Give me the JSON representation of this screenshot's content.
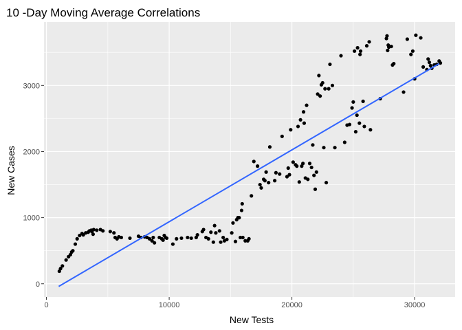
{
  "chart_data": {
    "type": "scatter",
    "title": "10 -Day Moving Average Correlations",
    "xlabel": "New Tests",
    "ylabel": "New Cases",
    "xlim": [
      -200,
      33300
    ],
    "ylim": [
      -200,
      3960
    ],
    "x_ticks": [
      0,
      10000,
      20000,
      30000
    ],
    "x_tick_labels": [
      "0",
      "10000",
      "20000",
      "30000"
    ],
    "y_ticks": [
      0,
      1000,
      2000,
      3000
    ],
    "y_tick_labels": [
      "0",
      "1000",
      "2000",
      "3000"
    ],
    "grid": true,
    "legend": "none",
    "colors": {
      "panel": "#ebebeb",
      "grid": "#ffffff",
      "points": "#000000",
      "trend": "#3366ff"
    },
    "trend_line": {
      "type": "linear",
      "x": [
        1000,
        32000
      ],
      "y": [
        -40,
        3330
      ]
    },
    "points": [
      [
        1050,
        190
      ],
      [
        1150,
        230
      ],
      [
        1300,
        270
      ],
      [
        1600,
        360
      ],
      [
        1800,
        410
      ],
      [
        1950,
        440
      ],
      [
        2050,
        480
      ],
      [
        2150,
        500
      ],
      [
        2350,
        600
      ],
      [
        2500,
        680
      ],
      [
        2700,
        730
      ],
      [
        2900,
        760
      ],
      [
        3000,
        740
      ],
      [
        3200,
        770
      ],
      [
        3400,
        780
      ],
      [
        3500,
        800
      ],
      [
        3650,
        810
      ],
      [
        3700,
        790
      ],
      [
        3800,
        750
      ],
      [
        3850,
        820
      ],
      [
        4100,
        810
      ],
      [
        4400,
        820
      ],
      [
        4600,
        800
      ],
      [
        5200,
        790
      ],
      [
        5500,
        770
      ],
      [
        5600,
        700
      ],
      [
        5750,
        680
      ],
      [
        5900,
        710
      ],
      [
        6100,
        700
      ],
      [
        6800,
        690
      ],
      [
        7500,
        720
      ],
      [
        7700,
        700
      ],
      [
        8000,
        710
      ],
      [
        8200,
        700
      ],
      [
        8400,
        680
      ],
      [
        8600,
        650
      ],
      [
        8700,
        700
      ],
      [
        8800,
        620
      ],
      [
        9200,
        700
      ],
      [
        9400,
        680
      ],
      [
        9500,
        660
      ],
      [
        9600,
        730
      ],
      [
        9700,
        700
      ],
      [
        9800,
        690
      ],
      [
        10300,
        600
      ],
      [
        10600,
        680
      ],
      [
        11000,
        690
      ],
      [
        11500,
        700
      ],
      [
        11800,
        690
      ],
      [
        12200,
        700
      ],
      [
        12300,
        740
      ],
      [
        12700,
        790
      ],
      [
        12800,
        820
      ],
      [
        13000,
        700
      ],
      [
        13200,
        680
      ],
      [
        13400,
        780
      ],
      [
        13600,
        630
      ],
      [
        13700,
        880
      ],
      [
        13800,
        770
      ],
      [
        14100,
        800
      ],
      [
        14200,
        630
      ],
      [
        14400,
        700
      ],
      [
        14500,
        650
      ],
      [
        14700,
        670
      ],
      [
        15100,
        770
      ],
      [
        15200,
        920
      ],
      [
        15400,
        640
      ],
      [
        15500,
        970
      ],
      [
        15600,
        1000
      ],
      [
        15700,
        1000
      ],
      [
        15800,
        700
      ],
      [
        15900,
        1110
      ],
      [
        15950,
        1210
      ],
      [
        16000,
        700
      ],
      [
        16200,
        650
      ],
      [
        16400,
        650
      ],
      [
        16500,
        680
      ],
      [
        16700,
        1330
      ],
      [
        16900,
        1850
      ],
      [
        17200,
        1780
      ],
      [
        17400,
        1500
      ],
      [
        17500,
        1450
      ],
      [
        17700,
        1580
      ],
      [
        17800,
        1560
      ],
      [
        17900,
        1690
      ],
      [
        18100,
        1530
      ],
      [
        18200,
        2070
      ],
      [
        18600,
        1560
      ],
      [
        18700,
        1680
      ],
      [
        19000,
        1660
      ],
      [
        19200,
        2230
      ],
      [
        19600,
        1620
      ],
      [
        19700,
        1750
      ],
      [
        19800,
        1650
      ],
      [
        19900,
        2330
      ],
      [
        20100,
        1840
      ],
      [
        20300,
        1800
      ],
      [
        20400,
        1780
      ],
      [
        20500,
        2380
      ],
      [
        20600,
        1540
      ],
      [
        20700,
        2480
      ],
      [
        20800,
        1780
      ],
      [
        20900,
        1820
      ],
      [
        20950,
        2600
      ],
      [
        21000,
        2430
      ],
      [
        21100,
        1600
      ],
      [
        21200,
        2700
      ],
      [
        21300,
        1580
      ],
      [
        21450,
        1820
      ],
      [
        21600,
        1760
      ],
      [
        21700,
        2100
      ],
      [
        21800,
        1640
      ],
      [
        21900,
        1430
      ],
      [
        22000,
        1690
      ],
      [
        22100,
        2870
      ],
      [
        22200,
        3150
      ],
      [
        22300,
        2840
      ],
      [
        22400,
        3010
      ],
      [
        22500,
        3040
      ],
      [
        22600,
        2060
      ],
      [
        22700,
        2950
      ],
      [
        22800,
        1530
      ],
      [
        23000,
        2950
      ],
      [
        23100,
        3320
      ],
      [
        23300,
        3000
      ],
      [
        23500,
        2060
      ],
      [
        24000,
        3450
      ],
      [
        24300,
        2140
      ],
      [
        24500,
        2400
      ],
      [
        24700,
        2410
      ],
      [
        24900,
        2660
      ],
      [
        25000,
        2750
      ],
      [
        25100,
        3520
      ],
      [
        25200,
        2300
      ],
      [
        25300,
        2550
      ],
      [
        25350,
        3570
      ],
      [
        25500,
        2430
      ],
      [
        25550,
        3470
      ],
      [
        25600,
        3520
      ],
      [
        25800,
        2760
      ],
      [
        25900,
        2380
      ],
      [
        26100,
        3600
      ],
      [
        26300,
        3660
      ],
      [
        26400,
        2330
      ],
      [
        27200,
        2800
      ],
      [
        27700,
        3710
      ],
      [
        27750,
        3750
      ],
      [
        27800,
        3530
      ],
      [
        27850,
        3610
      ],
      [
        27900,
        3580
      ],
      [
        28100,
        3590
      ],
      [
        28200,
        3310
      ],
      [
        28300,
        3330
      ],
      [
        29100,
        2900
      ],
      [
        29400,
        3700
      ],
      [
        29700,
        3470
      ],
      [
        29850,
        3520
      ],
      [
        30000,
        3100
      ],
      [
        30100,
        3760
      ],
      [
        30500,
        3720
      ],
      [
        30700,
        3280
      ],
      [
        31000,
        3240
      ],
      [
        31100,
        3400
      ],
      [
        31200,
        3350
      ],
      [
        31300,
        3300
      ],
      [
        31400,
        3260
      ],
      [
        31600,
        3310
      ],
      [
        31800,
        3320
      ],
      [
        32000,
        3370
      ],
      [
        32100,
        3340
      ]
    ]
  }
}
